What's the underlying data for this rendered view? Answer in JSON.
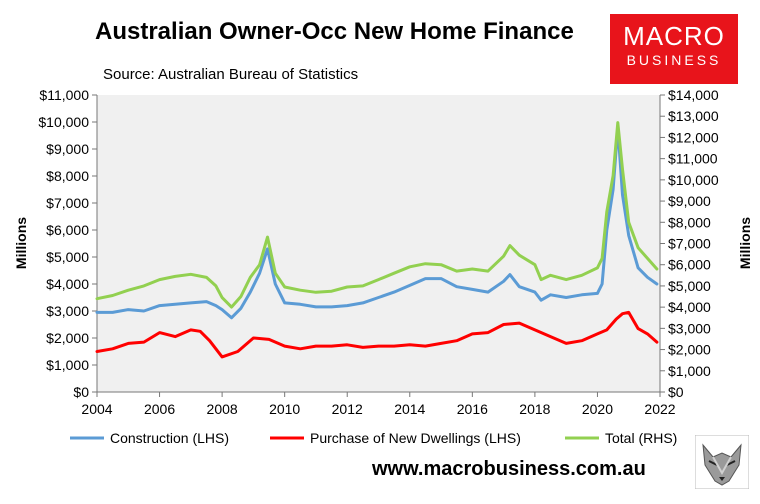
{
  "header": {
    "title": "Australian Owner-Occ New Home Finance",
    "source": "Source: Australian Bureau of Statistics"
  },
  "logo": {
    "line1": "MACRO",
    "line2": "BUSINESS"
  },
  "footer": {
    "website": "www.macrobusiness.com.au"
  },
  "colors": {
    "construction": "#5b9bd5",
    "purchase": "#ff0000",
    "total": "#92d050",
    "plot_bg": "#f0f0f0",
    "logo_bg": "#e8141b"
  },
  "chart_data": {
    "type": "line",
    "title": "Australian Owner-Occ New Home Finance",
    "subtitle": "Source: Australian Bureau of Statistics",
    "ylabel_left": "Millions",
    "ylabel_right": "Millions",
    "xlim": [
      2004,
      2022
    ],
    "ylim_left": [
      0,
      11000
    ],
    "ylim_right": [
      0,
      14000
    ],
    "x_ticks": [
      "2004",
      "2006",
      "2008",
      "2010",
      "2012",
      "2014",
      "2016",
      "2018",
      "2020",
      "2022"
    ],
    "y_left_ticks": [
      "$0",
      "$1,000",
      "$2,000",
      "$3,000",
      "$4,000",
      "$5,000",
      "$6,000",
      "$7,000",
      "$8,000",
      "$9,000",
      "$10,000",
      "$11,000"
    ],
    "y_right_ticks": [
      "$0",
      "$1,000",
      "$2,000",
      "$3,000",
      "$4,000",
      "$5,000",
      "$6,000",
      "$7,000",
      "$8,000",
      "$9,000",
      "$10,000",
      "$11,000",
      "$12,000",
      "$13,000",
      "$14,000"
    ],
    "grid": false,
    "legend_position": "bottom",
    "series": [
      {
        "name": "Construction (LHS)",
        "axis": "left",
        "x": [
          2004.0,
          2004.5,
          2005.0,
          2005.5,
          2006.0,
          2006.5,
          2007.0,
          2007.5,
          2007.8,
          2008.0,
          2008.3,
          2008.6,
          2008.9,
          2009.2,
          2009.45,
          2009.7,
          2010.0,
          2010.5,
          2011.0,
          2011.5,
          2012.0,
          2012.5,
          2013.0,
          2013.5,
          2014.0,
          2014.5,
          2015.0,
          2015.5,
          2016.0,
          2016.5,
          2017.0,
          2017.2,
          2017.5,
          2018.0,
          2018.2,
          2018.5,
          2019.0,
          2019.5,
          2020.0,
          2020.15,
          2020.3,
          2020.5,
          2020.65,
          2020.8,
          2021.0,
          2021.3,
          2021.6,
          2021.9
        ],
        "y": [
          2950,
          2950,
          3050,
          3000,
          3200,
          3250,
          3300,
          3350,
          3200,
          3050,
          2750,
          3100,
          3700,
          4400,
          5300,
          4000,
          3300,
          3250,
          3150,
          3150,
          3200,
          3300,
          3500,
          3700,
          3950,
          4200,
          4200,
          3900,
          3800,
          3700,
          4100,
          4350,
          3900,
          3700,
          3400,
          3600,
          3500,
          3600,
          3650,
          4000,
          6000,
          7500,
          9800,
          7300,
          5800,
          4600,
          4250,
          4000
        ]
      },
      {
        "name": "Purchase of New Dwellings (LHS)",
        "axis": "left",
        "x": [
          2004.0,
          2004.5,
          2005.0,
          2005.5,
          2006.0,
          2006.5,
          2007.0,
          2007.3,
          2007.6,
          2008.0,
          2008.5,
          2009.0,
          2009.5,
          2010.0,
          2010.5,
          2011.0,
          2011.5,
          2012.0,
          2012.5,
          2013.0,
          2013.5,
          2014.0,
          2014.5,
          2015.0,
          2015.5,
          2016.0,
          2016.5,
          2017.0,
          2017.5,
          2018.0,
          2018.5,
          2019.0,
          2019.5,
          2020.0,
          2020.3,
          2020.6,
          2020.8,
          2021.0,
          2021.3,
          2021.6,
          2021.9
        ],
        "y": [
          1500,
          1600,
          1800,
          1850,
          2200,
          2050,
          2300,
          2250,
          1900,
          1300,
          1500,
          2000,
          1950,
          1700,
          1600,
          1700,
          1700,
          1750,
          1650,
          1700,
          1700,
          1750,
          1700,
          1800,
          1900,
          2150,
          2200,
          2500,
          2550,
          2300,
          2050,
          1800,
          1900,
          2150,
          2300,
          2700,
          2900,
          2950,
          2350,
          2150,
          1850
        ]
      },
      {
        "name": "Total (RHS)",
        "axis": "right",
        "x": [
          2004.0,
          2004.5,
          2005.0,
          2005.5,
          2006.0,
          2006.5,
          2007.0,
          2007.5,
          2007.8,
          2008.0,
          2008.3,
          2008.6,
          2008.9,
          2009.2,
          2009.45,
          2009.7,
          2010.0,
          2010.5,
          2011.0,
          2011.5,
          2012.0,
          2012.5,
          2013.0,
          2013.5,
          2014.0,
          2014.5,
          2015.0,
          2015.5,
          2016.0,
          2016.5,
          2017.0,
          2017.2,
          2017.5,
          2018.0,
          2018.2,
          2018.5,
          2019.0,
          2019.5,
          2020.0,
          2020.15,
          2020.3,
          2020.5,
          2020.65,
          2020.8,
          2021.0,
          2021.3,
          2021.6,
          2021.9
        ],
        "y": [
          4400,
          4550,
          4800,
          5000,
          5300,
          5450,
          5550,
          5400,
          5000,
          4450,
          4000,
          4500,
          5400,
          6000,
          7300,
          5600,
          4950,
          4800,
          4700,
          4750,
          4950,
          5000,
          5300,
          5600,
          5900,
          6050,
          6000,
          5700,
          5800,
          5700,
          6400,
          6900,
          6450,
          6000,
          5300,
          5500,
          5300,
          5500,
          5850,
          6300,
          8500,
          10200,
          12700,
          10500,
          8000,
          6800,
          6300,
          5800
        ]
      }
    ]
  }
}
